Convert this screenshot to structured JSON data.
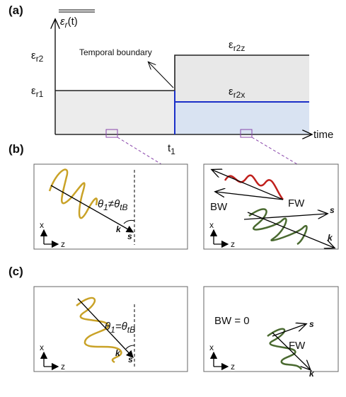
{
  "panel_a": {
    "label": "(a)",
    "y_axis": {
      "base": "ε",
      "sub": "r",
      "arg": "(t)"
    },
    "levels": [
      {
        "base": "ε",
        "sub": "r2"
      },
      {
        "base": "ε",
        "sub": "r1"
      }
    ],
    "after": [
      {
        "base": "ε",
        "sub": "r2z"
      },
      {
        "base": "ε",
        "sub": "r2x"
      }
    ],
    "annotation": "Temporal boundary",
    "x_axis": "time",
    "boundary": {
      "base": "t",
      "sub": "1"
    }
  },
  "panel_b": {
    "label": "(b)",
    "left": {
      "theta": "θ",
      "sub1": "1",
      "rel": "≠",
      "theta2": "θ",
      "sub2": "tB",
      "k": "k",
      "s": "s",
      "x": "x",
      "z": "z"
    },
    "right": {
      "bw": "BW",
      "fw": "FW",
      "s": "s",
      "k": "k",
      "x": "x",
      "z": "z"
    }
  },
  "panel_c": {
    "label": "(c)",
    "left": {
      "theta": "θ",
      "sub1": "1",
      "rel": "=",
      "theta2": "θ",
      "sub2": "tB",
      "k": "k",
      "s": "s",
      "x": "x",
      "z": "z"
    },
    "right": {
      "bw": "BW = 0",
      "fw": "FW",
      "s": "s",
      "k": "k",
      "x": "x",
      "z": "z"
    }
  }
}
